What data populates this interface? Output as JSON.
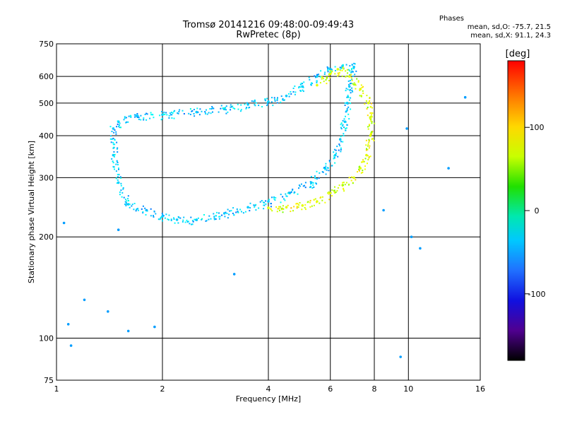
{
  "header": {
    "title": "Tromsø 20141216 09:48:00-09:49:43",
    "subtitle": "RwPretec (8p)",
    "stats_title": "Phases",
    "stats_o": "mean, sd,O: -75.7, 21.5",
    "stats_x": "mean, sd,X:  91.1, 24.3"
  },
  "chart_data": {
    "type": "scatter",
    "title": "Tromsø 20141216 09:48:00-09:49:43",
    "subtitle": "RwPretec (8p)",
    "xlabel": "Frequency [MHz]",
    "ylabel": "Stationary phase Virtual Height [km]",
    "x_scale": "log",
    "y_scale": "log",
    "xlim": [
      1,
      16
    ],
    "ylim": [
      75,
      750
    ],
    "x_ticks": [
      1,
      2,
      4,
      6,
      8,
      10,
      16
    ],
    "y_ticks": [
      75,
      100,
      200,
      300,
      400,
      500,
      600,
      750
    ],
    "grid": true,
    "colorbar": {
      "label": "[deg]",
      "range": [
        -180,
        180
      ],
      "ticks": [
        100,
        0,
        -100
      ]
    },
    "series": [
      {
        "name": "O",
        "points": [
          [
            1.5,
            440
          ],
          [
            1.7,
            458
          ],
          [
            2.0,
            462
          ],
          [
            2.5,
            470
          ],
          [
            3.0,
            480
          ],
          [
            3.5,
            495
          ],
          [
            4.0,
            505
          ],
          [
            4.5,
            525
          ],
          [
            5.0,
            560
          ],
          [
            5.5,
            600
          ],
          [
            6.0,
            630
          ],
          [
            6.5,
            645
          ],
          [
            7.0,
            640
          ],
          [
            6.8,
            560
          ],
          [
            6.7,
            500
          ],
          [
            6.6,
            440
          ],
          [
            6.4,
            390
          ],
          [
            6.2,
            350
          ],
          [
            5.8,
            320
          ],
          [
            5.3,
            290
          ],
          [
            4.6,
            270
          ],
          [
            4.0,
            255
          ],
          [
            3.5,
            245
          ],
          [
            3.0,
            235
          ],
          [
            2.5,
            225
          ],
          [
            2.2,
            225
          ],
          [
            2.0,
            230
          ],
          [
            1.8,
            240
          ],
          [
            1.6,
            250
          ],
          [
            1.5,
            290
          ],
          [
            1.45,
            350
          ],
          [
            1.45,
            420
          ]
        ],
        "phase_mean": -75.7,
        "phase_sd": 21.5
      },
      {
        "name": "X",
        "points": [
          [
            5.5,
            565
          ],
          [
            6.0,
            610
          ],
          [
            6.3,
            630
          ],
          [
            6.8,
            600
          ],
          [
            7.3,
            550
          ],
          [
            7.7,
            500
          ],
          [
            7.8,
            450
          ],
          [
            7.8,
            400
          ],
          [
            7.6,
            350
          ],
          [
            7.3,
            320
          ],
          [
            7.0,
            300
          ],
          [
            6.5,
            285
          ],
          [
            6.0,
            270
          ],
          [
            5.5,
            255
          ],
          [
            5.0,
            248
          ],
          [
            4.5,
            245
          ],
          [
            4.0,
            244
          ]
        ],
        "phase_mean": 91.1,
        "phase_sd": 24.3
      },
      {
        "name": "noise",
        "points": [
          [
            1.05,
            220
          ],
          [
            1.08,
            110
          ],
          [
            1.1,
            95
          ],
          [
            1.2,
            130
          ],
          [
            1.4,
            120
          ],
          [
            1.5,
            210
          ],
          [
            1.6,
            105
          ],
          [
            1.9,
            108
          ],
          [
            3.2,
            155
          ],
          [
            8.5,
            240
          ],
          [
            9.5,
            88
          ],
          [
            10.2,
            200
          ],
          [
            10.8,
            185
          ],
          [
            9.9,
            420
          ],
          [
            13.0,
            320
          ],
          [
            14.5,
            520
          ]
        ]
      }
    ]
  }
}
